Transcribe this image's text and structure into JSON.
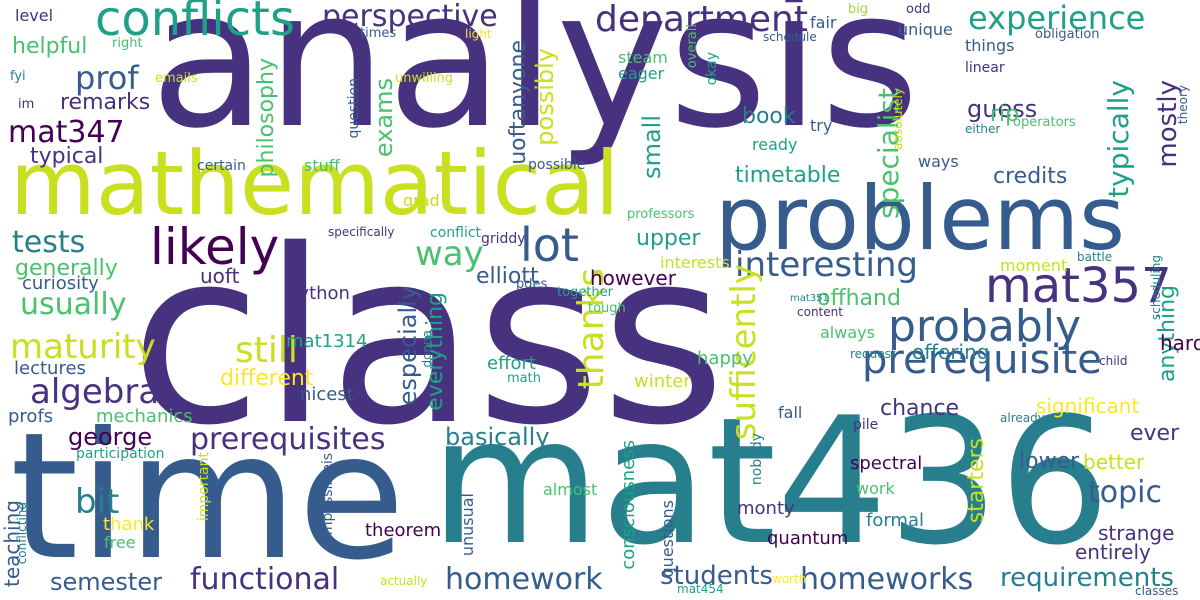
{
  "palette": {
    "c1": "#440154",
    "c2": "#46327e",
    "c3": "#365c8d",
    "c4": "#277f8e",
    "c5": "#1fa187",
    "c6": "#4ac16d",
    "c7": "#a0da39",
    "c8": "#c8e020",
    "c9": "#fde725"
  },
  "words": [
    {
      "t": "analysis",
      "c": "c2"
    },
    {
      "t": "class",
      "c": "c2"
    },
    {
      "t": "time",
      "c": "c3"
    },
    {
      "t": "mat436",
      "c": "c4"
    },
    {
      "t": "mathematical",
      "c": "c8"
    },
    {
      "t": "problems",
      "c": "c3"
    },
    {
      "t": "conflicts",
      "c": "c5"
    },
    {
      "t": "department",
      "c": "c2"
    },
    {
      "t": "experience",
      "c": "c5"
    },
    {
      "t": "perspective",
      "c": "c2"
    },
    {
      "t": "likely",
      "c": "c1"
    },
    {
      "t": "lot",
      "c": "c3"
    },
    {
      "t": "mat357",
      "c": "c2"
    },
    {
      "t": "probably",
      "c": "c3"
    },
    {
      "t": "prerequisite",
      "c": "c3"
    },
    {
      "t": "prerequisites",
      "c": "c2"
    },
    {
      "t": "interesting",
      "c": "c3"
    },
    {
      "t": "prof",
      "c": "c3"
    },
    {
      "t": "mat347",
      "c": "c1"
    },
    {
      "t": "tests",
      "c": "c4"
    },
    {
      "t": "usually",
      "c": "c6"
    },
    {
      "t": "maturity",
      "c": "c8"
    },
    {
      "t": "algebra",
      "c": "c2"
    },
    {
      "t": "still",
      "c": "c8"
    },
    {
      "t": "way",
      "c": "c6"
    },
    {
      "t": "bit",
      "c": "c4"
    },
    {
      "t": "functional",
      "c": "c2"
    },
    {
      "t": "homework",
      "c": "c3"
    },
    {
      "t": "homeworks",
      "c": "c3"
    },
    {
      "t": "topic",
      "c": "c3"
    },
    {
      "t": "thanks",
      "c": "c8"
    },
    {
      "t": "sufficently",
      "c": "c8"
    },
    {
      "t": "specialist",
      "c": "c6"
    },
    {
      "t": "typically",
      "c": "c5"
    },
    {
      "t": "mostly",
      "c": "c2"
    },
    {
      "t": "requirements",
      "c": "c4"
    },
    {
      "t": "semester",
      "c": "c3"
    },
    {
      "t": "students",
      "c": "c3"
    },
    {
      "t": "basically",
      "c": "c4"
    },
    {
      "t": "george",
      "c": "c1"
    },
    {
      "t": "generally",
      "c": "c6"
    },
    {
      "t": "helpful",
      "c": "c6"
    },
    {
      "t": "remarks",
      "c": "c2"
    },
    {
      "t": "typical",
      "c": "c2"
    },
    {
      "t": "philosophy",
      "c": "c6"
    },
    {
      "t": "exams",
      "c": "c6"
    },
    {
      "t": "possibly",
      "c": "c8"
    },
    {
      "t": "uoftanyone",
      "c": "c3"
    },
    {
      "t": "small",
      "c": "c5"
    },
    {
      "t": "book",
      "c": "c4"
    },
    {
      "t": "timetable",
      "c": "c5"
    },
    {
      "t": "credits",
      "c": "c3"
    },
    {
      "t": "guess",
      "c": "c2"
    },
    {
      "t": "rip",
      "c": "c6"
    },
    {
      "t": "upper",
      "c": "c5"
    },
    {
      "t": "elliott",
      "c": "c3"
    },
    {
      "t": "however",
      "c": "c1"
    },
    {
      "t": "different",
      "c": "c9"
    },
    {
      "t": "especially",
      "c": "c3"
    },
    {
      "t": "everything",
      "c": "c5"
    },
    {
      "t": "offhand",
      "c": "c6"
    },
    {
      "t": "offering",
      "c": "c4"
    },
    {
      "t": "chance",
      "c": "c2"
    },
    {
      "t": "significant",
      "c": "c9"
    },
    {
      "t": "ever",
      "c": "c2"
    },
    {
      "t": "lower",
      "c": "c3"
    },
    {
      "t": "better",
      "c": "c8"
    },
    {
      "t": "starters",
      "c": "c8"
    },
    {
      "t": "strange",
      "c": "c2"
    },
    {
      "t": "entirely",
      "c": "c2"
    },
    {
      "t": "anything",
      "c": "c5"
    },
    {
      "t": "hard",
      "c": "c1"
    },
    {
      "t": "uoft",
      "c": "c2"
    },
    {
      "t": "curiosity",
      "c": "c3"
    },
    {
      "t": "python",
      "c": "c2"
    },
    {
      "t": "mat1314",
      "c": "c5"
    },
    {
      "t": "nicest",
      "c": "c3"
    },
    {
      "t": "lectures",
      "c": "c3"
    },
    {
      "t": "profs",
      "c": "c3"
    },
    {
      "t": "mechanics",
      "c": "c6"
    },
    {
      "t": "teaching",
      "c": "c3"
    },
    {
      "t": "thank",
      "c": "c9"
    },
    {
      "t": "free",
      "c": "c6"
    },
    {
      "t": "theorem",
      "c": "c1"
    },
    {
      "t": "consciousness",
      "c": "c5"
    },
    {
      "t": "questions",
      "c": "c3"
    },
    {
      "t": "monty",
      "c": "c2"
    },
    {
      "t": "quantum",
      "c": "c1"
    },
    {
      "t": "spectral",
      "c": "c1"
    },
    {
      "t": "work",
      "c": "c6"
    },
    {
      "t": "formal",
      "c": "c4"
    },
    {
      "t": "happy",
      "c": "c6"
    },
    {
      "t": "effort",
      "c": "c5"
    },
    {
      "t": "winter",
      "c": "c8"
    },
    {
      "t": "fall",
      "c": "c3"
    },
    {
      "t": "always",
      "c": "c6"
    },
    {
      "t": "moment",
      "c": "c8"
    },
    {
      "t": "ways",
      "c": "c3"
    },
    {
      "t": "try",
      "c": "c3"
    },
    {
      "t": "ready",
      "c": "c5"
    },
    {
      "t": "steam",
      "c": "c6"
    },
    {
      "t": "eager",
      "c": "c5"
    },
    {
      "t": "level",
      "c": "c2"
    },
    {
      "t": "fair",
      "c": "c3"
    },
    {
      "t": "unique",
      "c": "c3"
    },
    {
      "t": "things",
      "c": "c3"
    },
    {
      "t": "linear",
      "c": "c2"
    },
    {
      "t": "question",
      "c": "c3"
    },
    {
      "t": "stuff",
      "c": "c6"
    },
    {
      "t": "certain",
      "c": "c3"
    },
    {
      "t": "possible",
      "c": "c3"
    },
    {
      "t": "grad",
      "c": "c8"
    },
    {
      "t": "interests",
      "c": "c8"
    },
    {
      "t": "almost",
      "c": "c6"
    },
    {
      "t": "nobody",
      "c": "c4"
    },
    {
      "t": "unusual",
      "c": "c3"
    },
    {
      "t": "important",
      "c": "c8"
    },
    {
      "t": "impossibleis",
      "c": "c3"
    },
    {
      "t": "participation",
      "c": "c5"
    },
    {
      "t": "conflicting",
      "c": "c4"
    },
    {
      "t": "actually",
      "c": "c8"
    },
    {
      "t": "mat454",
      "c": "c5"
    },
    {
      "t": "classes",
      "c": "c3"
    },
    {
      "t": "worth",
      "c": "c9"
    },
    {
      "t": "pile",
      "c": "c2"
    },
    {
      "t": "already",
      "c": "c4"
    },
    {
      "t": "request",
      "c": "c4"
    },
    {
      "t": "child",
      "c": "c2"
    },
    {
      "t": "battle",
      "c": "c4"
    },
    {
      "t": "content",
      "c": "c2"
    },
    {
      "t": "scheduling",
      "c": "c4"
    },
    {
      "t": "mat351",
      "c": "c4"
    },
    {
      "t": "specifically",
      "c": "c2"
    },
    {
      "t": "conflict",
      "c": "c5"
    },
    {
      "t": "griddy",
      "c": "c2"
    },
    {
      "t": "pdes",
      "c": "c3"
    },
    {
      "t": "together",
      "c": "c5"
    },
    {
      "t": "tough",
      "c": "c6"
    },
    {
      "t": "donna",
      "c": "c4"
    },
    {
      "t": "math",
      "c": "c5"
    },
    {
      "t": "professors",
      "c": "c6"
    },
    {
      "t": "overall",
      "c": "c6"
    },
    {
      "t": "okay",
      "c": "c5"
    },
    {
      "t": "absolutely",
      "c": "c8"
    },
    {
      "t": "either",
      "c": "c4"
    },
    {
      "t": "operators",
      "c": "c6"
    },
    {
      "t": "theory",
      "c": "c3"
    },
    {
      "t": "big",
      "c": "c7"
    },
    {
      "t": "odd",
      "c": "c2"
    },
    {
      "t": "schedule",
      "c": "c3"
    },
    {
      "t": "obligation",
      "c": "c3"
    },
    {
      "t": "right",
      "c": "c6"
    },
    {
      "t": "times",
      "c": "c3"
    },
    {
      "t": "light",
      "c": "c9"
    },
    {
      "t": "fyi",
      "c": "c4"
    },
    {
      "t": "emails",
      "c": "c8"
    },
    {
      "t": "unwilling",
      "c": "c8"
    },
    {
      "t": "im",
      "c": "c2"
    }
  ]
}
